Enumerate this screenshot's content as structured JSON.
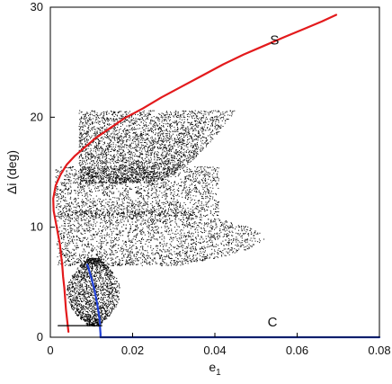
{
  "chart_data": {
    "type": "scatter",
    "title": "",
    "xlabel_base": "e",
    "xlabel_sub": "1",
    "ylabel": "Δi (deg)",
    "xlim": [
      0,
      0.08
    ],
    "ylim": [
      0,
      30
    ],
    "x_ticks": [
      0,
      0.02,
      0.04,
      0.06,
      0.08
    ],
    "x_tick_labels": [
      "0",
      "0.02",
      "0.04",
      "0.06",
      "0.08"
    ],
    "y_ticks": [
      0,
      10,
      20,
      30
    ],
    "y_tick_labels": [
      "0",
      "10",
      "20",
      "30"
    ],
    "grid": false,
    "legend": "none",
    "colors": {
      "scatter": "#000000",
      "curve_S": "#e31a1c",
      "curve_C": "#1f3fd6",
      "axes": "#000000"
    },
    "annotations": [
      {
        "text": "S",
        "x": 0.0545,
        "y": 26.6
      },
      {
        "text": "C",
        "x": 0.054,
        "y": 1.0
      }
    ],
    "series": [
      {
        "type": "line",
        "color": "#e31a1c",
        "x": [
          0.0044,
          0.0041,
          0.0038,
          0.0036,
          0.0034,
          0.0031,
          0.0029,
          0.0026,
          0.0023,
          0.0018,
          0.0013,
          0.0008,
          0.0007,
          0.0013,
          0.0025,
          0.004,
          0.006,
          0.0085,
          0.011,
          0.0145,
          0.018,
          0.0225,
          0.027,
          0.032,
          0.037,
          0.042,
          0.047,
          0.052,
          0.057,
          0.0615,
          0.066,
          0.0695
        ],
        "y": [
          0.5,
          1.5,
          2.5,
          3.5,
          4.5,
          5.5,
          6.5,
          7.5,
          8.5,
          9.5,
          10.5,
          11.5,
          12.6,
          13.8,
          14.8,
          15.7,
          16.5,
          17.3,
          18.1,
          19.0,
          19.9,
          20.8,
          21.8,
          22.8,
          23.8,
          24.8,
          25.7,
          26.5,
          27.3,
          28.0,
          28.7,
          29.3
        ]
      },
      {
        "type": "line",
        "color": "#1f3fd6",
        "x": [
          0.009,
          0.0095,
          0.0101,
          0.0106,
          0.011,
          0.0114,
          0.0117,
          0.012,
          0.0121,
          0.0122,
          0.0122
        ],
        "y": [
          6.6,
          6.0,
          5.2,
          4.5,
          3.8,
          3.0,
          2.3,
          1.6,
          0.8,
          0.3,
          0.0
        ]
      },
      {
        "type": "line",
        "color": "#1f3fd6",
        "x": [
          0.0122,
          0.08
        ],
        "y": [
          0.0,
          0.0
        ]
      },
      {
        "type": "line",
        "color": "#000000",
        "x": [
          0.0019,
          0.0125
        ],
        "y": [
          1.05,
          1.05
        ]
      },
      {
        "type": "scatter_cloud",
        "color": "#000000",
        "count": 9000,
        "regions": [
          {
            "x_min": 0.007,
            "x_max": 0.045,
            "y_min": 14.0,
            "y_max": 20.6,
            "weight": 0.35
          },
          {
            "x_min": 0.0012,
            "x_max": 0.041,
            "y_min": 11.0,
            "y_max": 15.5,
            "weight": 0.2
          },
          {
            "x_min": 0.0016,
            "x_max": 0.052,
            "y_min": 6.5,
            "y_max": 11.5,
            "weight": 0.25
          },
          {
            "x_min": 0.004,
            "x_max": 0.017,
            "y_min": 1.0,
            "y_max": 7.2,
            "weight": 0.2
          }
        ]
      }
    ]
  }
}
